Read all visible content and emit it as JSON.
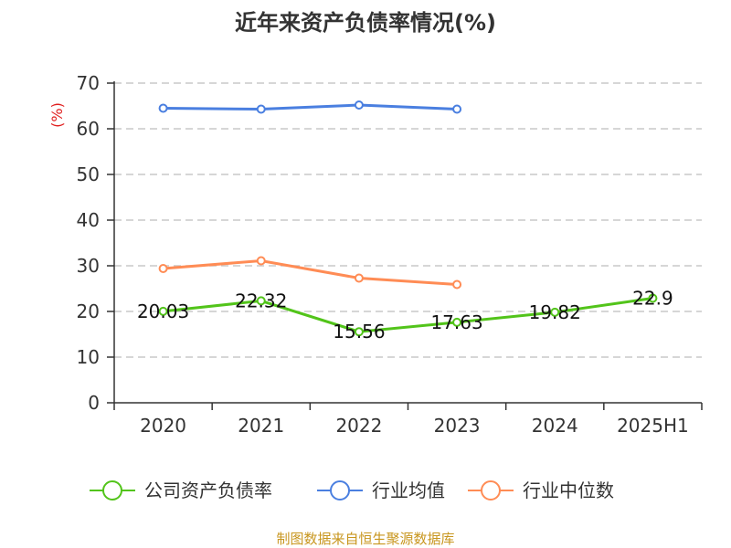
{
  "chart_data": {
    "type": "line",
    "title": "近年来资产负债率情况(%)",
    "ylabel": "(%)",
    "xlabel": "",
    "ylim": [
      0,
      70
    ],
    "yticks": [
      0,
      10,
      20,
      30,
      40,
      50,
      60,
      70
    ],
    "categories": [
      "2020",
      "2021",
      "2022",
      "2023",
      "2024",
      "2025H1"
    ],
    "grid": true,
    "legend_position": "bottom",
    "series": [
      {
        "name": "公司资产负债率",
        "color": "#52c41a",
        "values": [
          20.03,
          22.32,
          15.56,
          17.63,
          19.82,
          22.9
        ],
        "labels": [
          "20.03",
          "22.32",
          "15.56",
          "17.63",
          "19.82",
          "22.9"
        ]
      },
      {
        "name": "行业均值",
        "color": "#4a7fe0",
        "values": [
          64.5,
          64.3,
          65.2,
          64.3,
          null,
          null
        ]
      },
      {
        "name": "行业中位数",
        "color": "#ff8c55",
        "values": [
          29.4,
          31.1,
          27.3,
          25.9,
          null,
          null
        ]
      }
    ],
    "source": "制图数据来自恒生聚源数据库"
  }
}
